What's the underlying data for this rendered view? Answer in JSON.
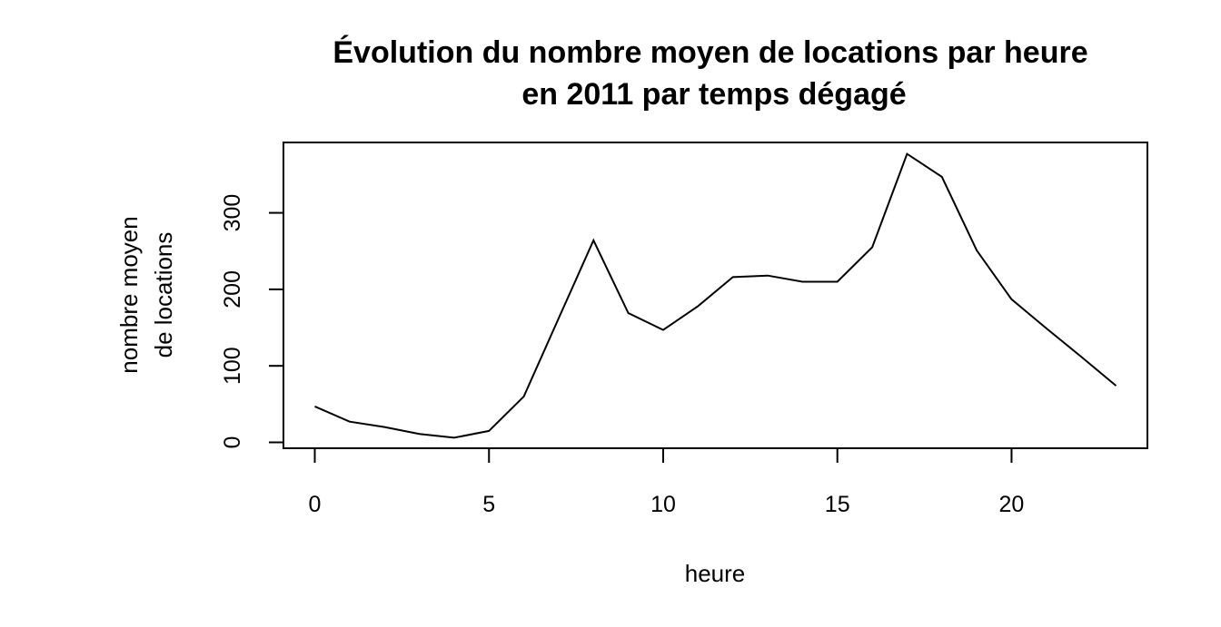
{
  "chart_data": {
    "type": "line",
    "title_lines": [
      "Évolution du nombre moyen de locations par heure",
      "en 2011 par temps dégagé"
    ],
    "xlabel": "heure",
    "ylabel_lines": [
      "nombre moyen",
      "de locations"
    ],
    "x": [
      0,
      1,
      2,
      3,
      4,
      5,
      6,
      7,
      8,
      9,
      10,
      11,
      12,
      13,
      14,
      15,
      16,
      17,
      18,
      19,
      20,
      21,
      22,
      23
    ],
    "series": [
      {
        "values": [
          47,
          27,
          20,
          11,
          6,
          15,
          60,
          162,
          264,
          169,
          147,
          178,
          216,
          218,
          210,
          210,
          255,
          377,
          347,
          251,
          187,
          149,
          112,
          74
        ]
      }
    ],
    "xlim": [
      -0.9,
      23.9
    ],
    "ylim": [
      -7.7,
      392
    ],
    "xticks": [
      0,
      5,
      10,
      15,
      20
    ],
    "xtick_labels": [
      "0",
      "5",
      "10",
      "15",
      "20"
    ],
    "yticks": [
      0,
      100,
      200,
      300
    ],
    "ytick_labels": [
      "0",
      "100",
      "200",
      "300"
    ],
    "grid": false,
    "line_color": "#000000"
  }
}
